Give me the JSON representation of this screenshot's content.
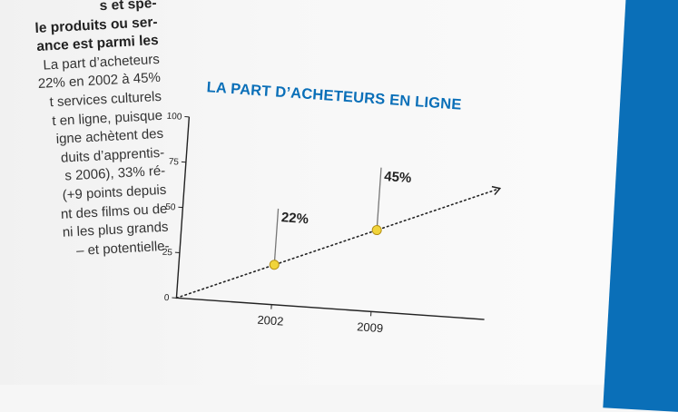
{
  "article": {
    "lines": [
      "s et spé-",
      "le produits ou ser-",
      "ance est parmi les",
      "La part d’acheteurs",
      "22% en 2002 à 45%",
      "t services culturels",
      "t en ligne, puisque",
      "igne achètent des",
      "duits d’apprentis-",
      "s 2006), 33% ré-",
      "(+9 points depuis",
      "nt des films ou de",
      "ni les plus grands",
      "– et potentielle-"
    ]
  },
  "colors": {
    "accent": "#0a6fb8",
    "marker_fill": "#f1d43b",
    "marker_stroke": "#b48f14"
  },
  "chart_data": {
    "type": "line",
    "title": "LA PART D’ACHETEURS EN LIGNE",
    "ylim": [
      0,
      100
    ],
    "yticks": [
      0,
      25,
      50,
      75,
      100
    ],
    "xticks": [
      "2002",
      "2009"
    ],
    "x": [
      2002,
      2009
    ],
    "values": [
      22,
      45
    ],
    "data_labels": [
      "22%",
      "45%"
    ],
    "trend": "dotted line with arrow"
  }
}
